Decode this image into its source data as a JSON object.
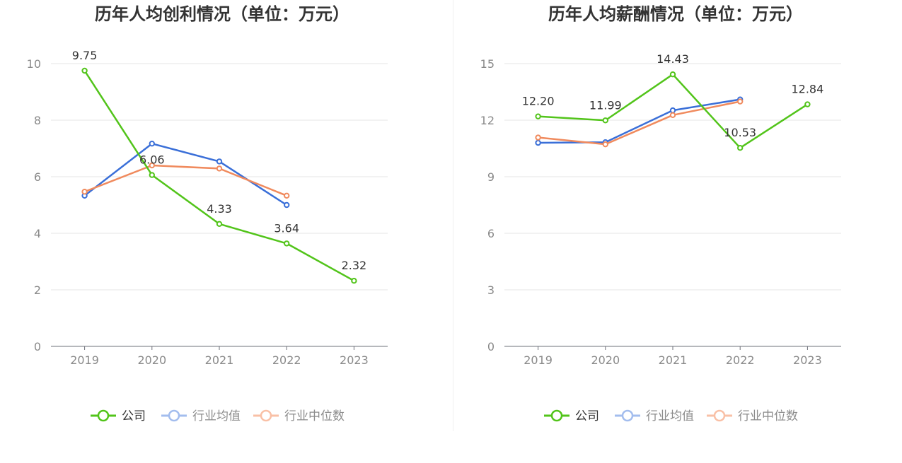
{
  "chart_data": [
    {
      "type": "line",
      "title": "历年人均创利情况（单位：万元）",
      "categories": [
        "2019",
        "2020",
        "2021",
        "2022",
        "2023"
      ],
      "ylim": [
        0,
        10
      ],
      "yticks": [
        0,
        2,
        4,
        6,
        8,
        10
      ],
      "grid": true,
      "legend_position": "bottom-center",
      "series": [
        {
          "name": "公司",
          "color": "#52c41a",
          "values": [
            9.75,
            6.06,
            4.33,
            3.64,
            2.32
          ],
          "labels": [
            "9.75",
            "6.06",
            "4.33",
            "3.64",
            "2.32"
          ],
          "active": true
        },
        {
          "name": "行业均值",
          "color": "#3a6fd8",
          "values": [
            5.33,
            7.17,
            6.54,
            5.0,
            null
          ],
          "active": false
        },
        {
          "name": "行业中位数",
          "color": "#f08a5d",
          "values": [
            5.47,
            6.4,
            6.29,
            5.33,
            null
          ],
          "active": false
        }
      ]
    },
    {
      "type": "line",
      "title": "历年人均薪酬情况（单位：万元）",
      "categories": [
        "2019",
        "2020",
        "2021",
        "2022",
        "2023"
      ],
      "ylim": [
        0,
        15
      ],
      "yticks": [
        0,
        3,
        6,
        9,
        12,
        15
      ],
      "grid": true,
      "legend_position": "bottom-center",
      "series": [
        {
          "name": "公司",
          "color": "#52c41a",
          "values": [
            12.2,
            11.99,
            14.43,
            10.53,
            12.84
          ],
          "labels": [
            "12.20",
            "11.99",
            "14.43",
            "10.53",
            "12.84"
          ],
          "active": true
        },
        {
          "name": "行业均值",
          "color": "#3a6fd8",
          "values": [
            10.8,
            10.83,
            12.52,
            13.1,
            null
          ],
          "active": false
        },
        {
          "name": "行业中位数",
          "color": "#f08a5d",
          "values": [
            11.08,
            10.72,
            12.27,
            12.99,
            null
          ],
          "active": false
        }
      ]
    }
  ],
  "legend_colors": {
    "inactive_text": "#8c8c8c",
    "active_text": "#333333",
    "inactive_blue": "#a3bdee",
    "inactive_orange": "#f9c0a6"
  }
}
